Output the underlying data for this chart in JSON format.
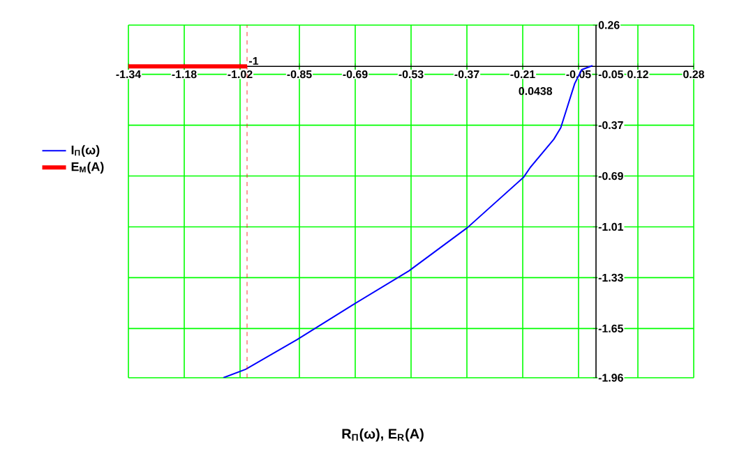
{
  "chart_data": {
    "type": "line",
    "xlabel": "R$_{П}$(ω), E$_{R}$(A)",
    "xlim": [
      -1.34,
      0.28
    ],
    "xticks": [
      -1.34,
      -1.18,
      -1.02,
      -0.85,
      -0.69,
      -0.53,
      -0.37,
      -0.21,
      -0.05,
      0.12,
      0.28
    ],
    "ylim": [
      -1.96,
      0.26
    ],
    "yticks": [
      -1.96,
      -1.65,
      -1.33,
      -1.01,
      -0.69,
      -0.37,
      -0.05,
      0.26
    ],
    "grid": true,
    "legend": "left",
    "series": [
      {
        "name": "I$_{П}$(ω)",
        "color": "#0000ff",
        "x": [
          -1.068,
          -1.004,
          -0.857,
          -0.696,
          -0.536,
          -0.368,
          -0.208,
          -0.188,
          -0.121,
          -0.101,
          -0.061,
          -0.041,
          -0.016,
          -0.01
        ],
        "values": [
          -1.96,
          -1.907,
          -1.72,
          -1.5,
          -1.287,
          -1.014,
          -0.699,
          -0.635,
          -0.459,
          -0.386,
          -0.108,
          -0.021,
          0.0,
          0.005
        ]
      },
      {
        "name": "E$_{M}$(A)",
        "color": "#ff0000",
        "x": [
          -1.34,
          -1.0
        ],
        "values": [
          0,
          0
        ]
      }
    ],
    "ref_lines": [
      {
        "axis": "x",
        "value": -1.0,
        "label": "-1",
        "color": "#ff0000",
        "line_style": "dashed"
      }
    ],
    "annotations": [
      "0.0438"
    ]
  }
}
